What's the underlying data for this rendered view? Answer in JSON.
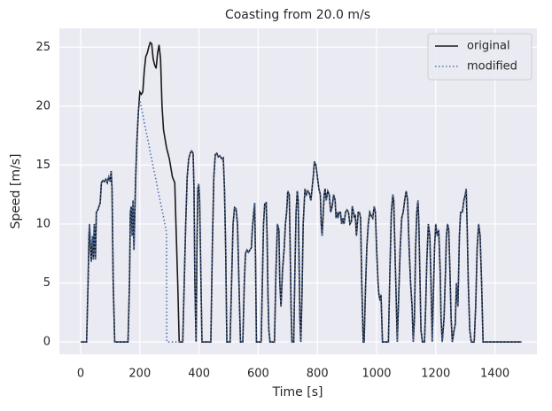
{
  "chart_data": {
    "type": "line",
    "title": "Coasting from 20.0 m/s",
    "x_label": "Time [s]",
    "y_label": "Speed [m/s]",
    "xlim": [
      -72,
      1542
    ],
    "ylim": [
      -1.05,
      26.6
    ],
    "xticks": [
      0,
      200,
      400,
      600,
      800,
      1000,
      1200,
      1400
    ],
    "yticks": [
      0,
      5,
      10,
      15,
      20,
      25
    ],
    "grid": true,
    "legend": "upper right",
    "x": [
      0,
      20,
      25,
      28,
      30,
      33,
      36,
      40,
      43,
      46,
      50,
      53,
      58,
      62,
      66,
      70,
      75,
      80,
      85,
      90,
      95,
      100,
      103,
      106,
      110,
      115,
      160,
      165,
      168,
      171,
      174,
      177,
      180,
      183,
      186,
      190,
      195,
      200,
      205,
      210,
      215,
      220,
      225,
      230,
      235,
      240,
      245,
      250,
      255,
      260,
      265,
      270,
      275,
      280,
      290,
      291,
      300,
      310,
      318,
      322,
      328,
      333,
      340,
      345,
      350,
      355,
      360,
      365,
      370,
      375,
      380,
      383,
      386,
      390,
      393,
      396,
      399,
      402,
      406,
      410,
      440,
      445,
      450,
      455,
      460,
      465,
      470,
      478,
      482,
      486,
      490,
      494,
      505,
      510,
      515,
      520,
      525,
      530,
      535,
      540,
      548,
      553,
      557,
      562,
      567,
      572,
      577,
      580,
      585,
      588,
      591,
      594,
      610,
      614,
      618,
      622,
      627,
      630,
      633,
      636,
      640,
      655,
      660,
      665,
      670,
      673,
      677,
      682,
      688,
      692,
      696,
      700,
      705,
      708,
      711,
      714,
      720,
      724,
      728,
      732,
      735,
      738,
      741,
      744,
      748,
      752,
      758,
      763,
      768,
      773,
      778,
      782,
      786,
      790,
      795,
      800,
      805,
      810,
      813,
      816,
      820,
      823,
      826,
      830,
      835,
      840,
      845,
      850,
      855,
      860,
      863,
      866,
      870,
      873,
      878,
      882,
      886,
      890,
      895,
      900,
      905,
      910,
      915,
      918,
      922,
      925,
      928,
      932,
      935,
      938,
      942,
      946,
      950,
      955,
      958,
      962,
      967,
      972,
      977,
      982,
      987,
      992,
      996,
      1000,
      1005,
      1008,
      1012,
      1015,
      1020,
      1040,
      1045,
      1050,
      1055,
      1058,
      1062,
      1066,
      1070,
      1075,
      1080,
      1085,
      1090,
      1095,
      1100,
      1105,
      1110,
      1115,
      1120,
      1124,
      1128,
      1132,
      1136,
      1140,
      1143,
      1147,
      1150,
      1155,
      1162,
      1166,
      1170,
      1175,
      1180,
      1184,
      1188,
      1192,
      1196,
      1200,
      1205,
      1210,
      1215,
      1218,
      1222,
      1228,
      1233,
      1236,
      1240,
      1244,
      1248,
      1252,
      1256,
      1262,
      1266,
      1270,
      1275,
      1280,
      1284,
      1290,
      1295,
      1300,
      1303,
      1306,
      1310,
      1315,
      1320,
      1330,
      1335,
      1340,
      1345,
      1350,
      1355,
      1360,
      1490
    ],
    "series": [
      {
        "name": "original",
        "color": "#1a1a1a",
        "dash": "solid",
        "values": [
          0,
          0,
          5,
          9,
          10,
          8,
          6.8,
          9,
          7,
          10,
          7,
          11,
          11.2,
          11.5,
          11.8,
          13.5,
          13.7,
          13.6,
          13.8,
          13.5,
          14,
          13.6,
          14.5,
          13,
          5,
          0,
          0,
          5,
          11,
          11.5,
          9,
          12,
          7.8,
          11,
          14,
          17,
          19.5,
          21.2,
          21,
          21.2,
          23,
          24.2,
          24.5,
          25,
          25.4,
          25.3,
          24,
          23.5,
          23.2,
          24.5,
          25.2,
          24,
          20,
          18,
          16.5,
          16.4,
          15.5,
          14,
          13.5,
          10,
          5,
          0,
          0,
          0,
          5,
          10,
          14,
          15.5,
          16,
          16.2,
          16,
          13,
          5,
          0,
          8,
          13,
          13.4,
          12,
          6,
          0,
          0,
          8,
          14,
          15.9,
          16,
          15.7,
          15.8,
          15.5,
          15.6,
          13,
          8,
          0,
          0,
          5,
          10,
          11.4,
          11.3,
          10,
          5,
          0,
          0,
          5,
          7.5,
          7.8,
          7.6,
          7.8,
          8,
          9.5,
          11,
          11.8,
          7,
          0,
          0,
          5,
          10,
          11.7,
          11.8,
          9,
          4,
          1,
          0,
          0,
          6,
          10,
          9.5,
          5,
          3,
          6,
          8,
          10,
          11,
          12.8,
          12.5,
          8,
          3,
          0,
          0,
          6,
          11,
          12.8,
          12,
          7,
          2,
          0,
          4,
          10,
          13,
          12.5,
          12.8,
          12.6,
          12,
          13,
          14,
          15.3,
          15,
          14,
          13,
          12.5,
          10,
          9,
          11,
          12.5,
          13,
          12,
          12.8,
          12.5,
          11,
          11.5,
          12.5,
          12,
          10.5,
          11,
          10.5,
          11,
          11,
          10,
          10.5,
          10,
          11,
          11.2,
          11,
          10,
          10.2,
          11.5,
          11,
          10.5,
          10.8,
          9,
          10,
          11,
          11,
          10.5,
          5,
          0,
          0,
          4,
          8,
          10,
          11,
          10.7,
          10.5,
          11.5,
          11,
          8,
          5,
          4,
          3.5,
          4,
          0,
          0,
          6,
          11,
          12.5,
          12,
          8,
          4,
          0,
          4,
          8,
          10.5,
          11,
          12,
          12.8,
          12,
          8,
          5,
          3,
          0,
          2,
          8,
          11,
          12,
          10,
          5,
          1,
          0,
          0,
          3,
          7,
          10,
          9,
          5,
          0,
          4,
          8,
          10,
          9,
          9.5,
          6,
          2,
          0,
          2,
          6,
          9,
          10,
          9.5,
          6,
          2,
          0,
          1,
          1.5,
          5,
          3,
          9,
          11,
          11,
          12,
          12.5,
          13,
          10,
          5,
          1,
          0,
          0,
          3,
          8,
          10,
          9,
          5,
          0,
          0
        ]
      },
      {
        "name": "modified",
        "color": "#4c72b0",
        "dash": "dotted",
        "values": [
          0,
          0,
          5,
          9,
          10,
          8,
          6.8,
          9,
          7,
          10,
          7,
          11,
          11.2,
          11.5,
          11.8,
          13.5,
          13.7,
          13.6,
          13.8,
          13.5,
          14,
          13.6,
          14.5,
          13,
          5,
          0,
          0,
          5,
          11,
          11.5,
          9,
          12,
          7.8,
          11,
          14,
          17,
          19.5,
          20.5,
          19.9,
          19.3,
          18.6,
          18.0,
          17.4,
          16.8,
          16.1,
          15.5,
          14.9,
          14.3,
          13.7,
          13.0,
          12.4,
          11.8,
          11.2,
          10.6,
          9.3,
          0,
          0,
          0,
          0,
          0,
          0,
          0,
          0,
          0,
          5,
          10,
          14,
          15.5,
          16,
          16.2,
          16,
          13,
          5,
          0,
          8,
          13,
          13.4,
          12,
          6,
          0,
          0,
          8,
          14,
          15.9,
          16,
          15.7,
          15.8,
          15.5,
          15.6,
          13,
          8,
          0,
          0,
          5,
          10,
          11.4,
          11.3,
          10,
          5,
          0,
          0,
          5,
          7.5,
          7.8,
          7.6,
          7.8,
          8,
          9.5,
          11,
          11.8,
          7,
          0,
          0,
          5,
          10,
          11.7,
          11.8,
          9,
          4,
          1,
          0,
          0,
          6,
          10,
          9.5,
          5,
          3,
          6,
          8,
          10,
          11,
          12.8,
          12.5,
          8,
          3,
          0,
          0,
          6,
          11,
          12.8,
          12,
          7,
          2,
          0,
          4,
          10,
          13,
          12.5,
          12.8,
          12.6,
          12,
          13,
          14,
          15.3,
          15,
          14,
          13,
          12.5,
          10,
          9,
          11,
          12.5,
          13,
          12,
          12.8,
          12.5,
          11,
          11.5,
          12.5,
          12,
          10.5,
          11,
          10.5,
          11,
          11,
          10,
          10.5,
          10,
          11,
          11.2,
          11,
          10,
          10.2,
          11.5,
          11,
          10.5,
          10.8,
          9,
          10,
          11,
          11,
          10.5,
          5,
          0,
          0,
          4,
          8,
          10,
          11,
          10.7,
          10.5,
          11.5,
          11,
          8,
          5,
          4,
          3.5,
          4,
          0,
          0,
          6,
          11,
          12.5,
          12,
          8,
          4,
          0,
          4,
          8,
          10.5,
          11,
          12,
          12.8,
          12,
          8,
          5,
          3,
          0,
          2,
          8,
          11,
          12,
          10,
          5,
          1,
          0,
          0,
          3,
          7,
          10,
          9,
          5,
          0,
          4,
          8,
          10,
          9,
          9.5,
          6,
          2,
          0,
          2,
          6,
          9,
          10,
          9.5,
          6,
          2,
          0,
          1,
          1.5,
          5,
          3,
          9,
          11,
          11,
          12,
          12.5,
          13,
          10,
          5,
          1,
          0,
          0,
          3,
          8,
          10,
          9,
          5,
          0,
          0
        ]
      }
    ]
  }
}
